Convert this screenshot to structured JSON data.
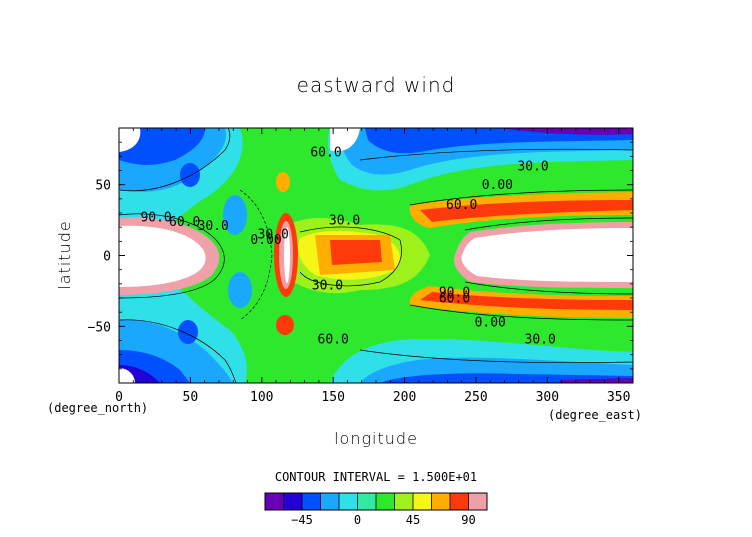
{
  "chart_data": {
    "type": "contour",
    "title": "eastward wind",
    "xlabel": "longitude",
    "ylabel": "latitude",
    "xunit": "(degree_east)",
    "yunit": "(degree_north)",
    "xlim": [
      0,
      360
    ],
    "ylim": [
      -90,
      90
    ],
    "xticks": [
      0,
      50,
      100,
      150,
      200,
      250,
      300,
      350
    ],
    "yticks": [
      -50,
      0,
      50
    ],
    "contour_interval_text": "CONTOUR INTERVAL = 1.500E+01",
    "contour_labels": [
      {
        "text": "60.0",
        "x": 145,
        "y": 70
      },
      {
        "text": "30.0",
        "x": 290,
        "y": 60
      },
      {
        "text": "0.00",
        "x": 265,
        "y": 47
      },
      {
        "text": "60.0",
        "x": 240,
        "y": 33
      },
      {
        "text": "90.0",
        "x": 26,
        "y": 24
      },
      {
        "text": "60.0",
        "x": 46,
        "y": 21
      },
      {
        "text": "30.0",
        "x": 66,
        "y": 18
      },
      {
        "text": "30.0",
        "x": 158,
        "y": 22
      },
      {
        "text": "0.00",
        "x": 103,
        "y": 8
      },
      {
        "text": "30.0",
        "x": 108,
        "y": 12
      },
      {
        "text": "30.0",
        "x": 146,
        "y": -24
      },
      {
        "text": "90.0",
        "x": 235,
        "y": -29
      },
      {
        "text": "60.0",
        "x": 235,
        "y": -33
      },
      {
        "text": "0.00",
        "x": 260,
        "y": -50
      },
      {
        "text": "30.0",
        "x": 295,
        "y": -62
      },
      {
        "text": "60.0",
        "x": 150,
        "y": -62
      }
    ],
    "colorbar": {
      "levels": [
        -75,
        -60,
        -45,
        -30,
        -15,
        0,
        15,
        30,
        45,
        60,
        75,
        90,
        105
      ],
      "colors": [
        "#6a00b5",
        "#2200d6",
        "#0050ff",
        "#1aa8ff",
        "#30e0e8",
        "#33e8a0",
        "#2ee82e",
        "#9cf21a",
        "#f5f516",
        "#ffae00",
        "#ff3a0a",
        "#f0a0a8"
      ],
      "tick_labels": [
        "-45",
        "0",
        "45",
        "90"
      ],
      "tick_values": [
        -45,
        0,
        45,
        90
      ]
    }
  }
}
